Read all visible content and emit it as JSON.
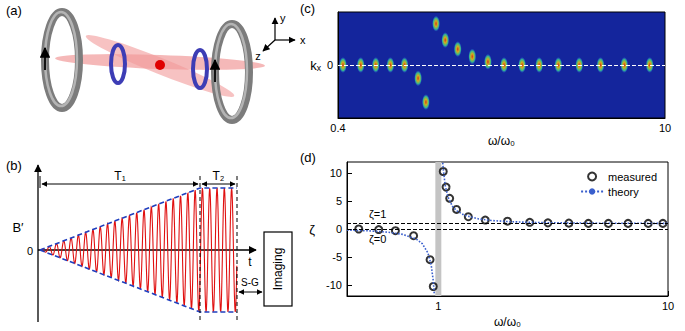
{
  "panel_a": {
    "label": "(a)",
    "axes": [
      "x",
      "y",
      "z"
    ]
  },
  "panel_b": {
    "label": "(b)",
    "y_axis": "B′",
    "origin": "0",
    "x_axis": "t",
    "intervals": [
      "T₁",
      "T₂"
    ],
    "step": "S-G",
    "box": "Imaging"
  },
  "chart_data": [
    {
      "panel_label": "(c)",
      "type": "scatter",
      "x_label": "ω/ω₀",
      "y_label": "kₓ",
      "log": "x",
      "xlim": [
        0.4,
        10
      ],
      "xticks": [
        0.4,
        10
      ],
      "ylim": [
        -1,
        1
      ],
      "yticks": [
        0
      ],
      "grid": true,
      "color": "#ffd000",
      "x": [
        0.42,
        0.5,
        0.58,
        0.67,
        0.77,
        0.88,
        0.95,
        1.05,
        1.15,
        1.3,
        1.5,
        1.75,
        2.05,
        2.45,
        2.9,
        3.5,
        4.3,
        5.3,
        6.7,
        8.6
      ],
      "values": [
        0,
        0,
        0,
        0,
        0,
        -0.25,
        -0.7,
        0.78,
        0.47,
        0.3,
        0.16,
        0.06,
        0,
        0,
        0,
        0,
        0,
        0,
        0,
        0
      ]
    },
    {
      "panel_label": "(d)",
      "type": "scatter",
      "x_label": "ω/ω₀",
      "y_label": "ζ",
      "log": "x",
      "xlim": [
        0.4,
        10
      ],
      "xticks": [
        1,
        10
      ],
      "ylim": [
        -12,
        12
      ],
      "yticks": [
        -10,
        -5,
        0,
        5,
        10
      ],
      "legend": "upper right",
      "shaded_range": [
        0.97,
        1.03
      ],
      "reference_lines": [
        {
          "y": 1,
          "label": "ζ=1"
        },
        {
          "y": 0,
          "label": "ζ=0"
        }
      ],
      "series": [
        {
          "name": "measured",
          "type": "scatter",
          "marker": "open circle",
          "color": "#000000",
          "x": [
            0.45,
            0.55,
            0.65,
            0.78,
            0.92,
            0.95,
            1.05,
            1.08,
            1.12,
            1.2,
            1.35,
            1.6,
            2,
            2.5,
            3,
            3.7,
            4.5,
            5.5,
            6.7,
            8.2,
            9.5
          ],
          "values": [
            0,
            -0.1,
            -0.3,
            -1.2,
            -5.5,
            -10.3,
            10.3,
            7.5,
            5.5,
            3.5,
            2.2,
            1.6,
            1.4,
            1.2,
            1.1,
            1.05,
            1,
            1,
            1,
            1,
            1
          ]
        },
        {
          "name": "theory",
          "type": "line",
          "line_style": "dotted",
          "color": "#3a5fcd",
          "x": [
            0.4,
            0.5,
            0.6,
            0.7,
            0.8,
            0.85,
            0.9,
            0.93,
            0.95,
            0.96,
            1,
            1.045,
            1.05,
            1.07,
            1.1,
            1.15,
            1.2,
            1.3,
            1.5,
            1.7,
            2,
            2.5,
            3,
            4,
            5,
            7,
            10
          ],
          "values": [
            -0.19,
            -0.33,
            -0.56,
            -0.96,
            -1.78,
            -2.6,
            -4.26,
            -6.4,
            -9.26,
            -11.76,
            null,
            11.87,
            10.76,
            7.9,
            5.76,
            4.1,
            3.27,
            2.45,
            1.8,
            1.53,
            1.33,
            1.19,
            1.13,
            1.07,
            1.04,
            1.02,
            1.01
          ]
        }
      ]
    }
  ]
}
